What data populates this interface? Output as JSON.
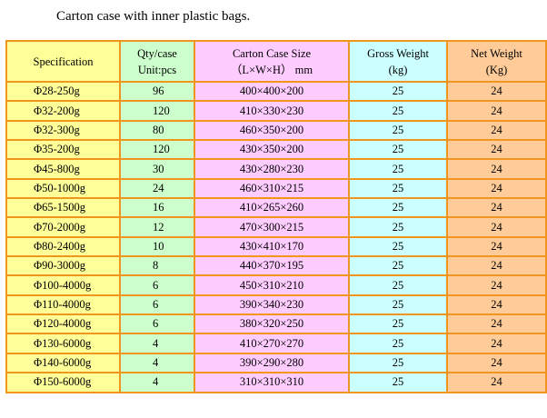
{
  "caption": "Carton case with inner plastic bags.",
  "headers": {
    "spec": "Specification",
    "qty_1": "Qty/case",
    "qty_2": "Unit:pcs",
    "size_1": "Carton Case Size",
    "size_2": "（L×W×H） mm",
    "gross_1": "Gross Weight",
    "gross_2": "(kg)",
    "net_1": "Net Weight",
    "net_2": "(Kg)"
  },
  "rows": [
    {
      "spec": "Φ28-250g",
      "qty": "96",
      "size": "400×400×200",
      "gross": "25",
      "net": "24"
    },
    {
      "spec": "Φ32-200g",
      "qty": "120",
      "size": "410×330×230",
      "gross": "25",
      "net": "24"
    },
    {
      "spec": "Φ32-300g",
      "qty": "80",
      "size": "460×350×200",
      "gross": "25",
      "net": "24"
    },
    {
      "spec": "Φ35-200g",
      "qty": "120",
      "size": "430×350×200",
      "gross": "25",
      "net": "24"
    },
    {
      "spec": "Φ45-800g",
      "qty": "30",
      "size": "430×280×230",
      "gross": "25",
      "net": "24"
    },
    {
      "spec": "Φ50-1000g",
      "qty": "24",
      "size": "460×310×215",
      "gross": "25",
      "net": "24"
    },
    {
      "spec": "Φ65-1500g",
      "qty": "16",
      "size": "410×265×260",
      "gross": "25",
      "net": "24"
    },
    {
      "spec": "Φ70-2000g",
      "qty": "12",
      "size": "470×300×215",
      "gross": "25",
      "net": "24"
    },
    {
      "spec": "Φ80-2400g",
      "qty": "10",
      "size": "430×410×170",
      "gross": "25",
      "net": "24"
    },
    {
      "spec": "Φ90-3000g",
      "qty": "8",
      "size": "440×370×195",
      "gross": "25",
      "net": "24"
    },
    {
      "spec": "Φ100-4000g",
      "qty": "6",
      "size": "450×310×210",
      "gross": "25",
      "net": "24"
    },
    {
      "spec": "Φ110-4000g",
      "qty": "6",
      "size": "390×340×230",
      "gross": "25",
      "net": "24"
    },
    {
      "spec": "Φ120-4000g",
      "qty": "6",
      "size": "380×320×250",
      "gross": "25",
      "net": "24"
    },
    {
      "spec": "Φ130-6000g",
      "qty": "4",
      "size": "410×270×270",
      "gross": "25",
      "net": "24"
    },
    {
      "spec": "Φ140-6000g",
      "qty": "4",
      "size": "390×290×280",
      "gross": "25",
      "net": "24"
    },
    {
      "spec": "Φ150-6000g",
      "qty": "4",
      "size": "310×310×310",
      "gross": "25",
      "net": "24"
    }
  ],
  "colors": {
    "border": "#f0961e",
    "spec_column": "#ffff99",
    "qty_column": "#ccffcc",
    "size_column": "#ffccff",
    "gross_column": "#ccffff",
    "net_column": "#ffcc99"
  }
}
